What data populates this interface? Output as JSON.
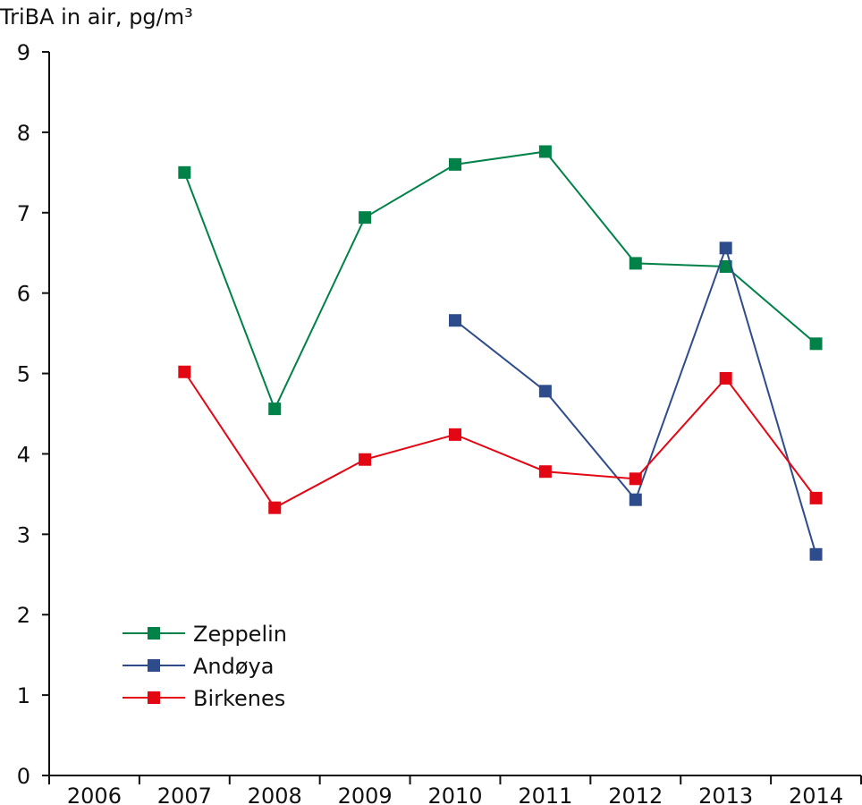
{
  "chart_data": {
    "type": "line",
    "title": "",
    "ylabel": "TriBA in air, pg/m³",
    "xlabel": "",
    "categories": [
      "2006",
      "2007",
      "2008",
      "2009",
      "2010",
      "2011",
      "2012",
      "2013",
      "2014"
    ],
    "ylim": [
      0,
      9
    ],
    "yticks": [
      "0",
      "1",
      "2",
      "3",
      "4",
      "5",
      "6",
      "7",
      "8",
      "9"
    ],
    "grid": false,
    "legend_position": "bottom-left",
    "series": [
      {
        "name": "Zeppelin",
        "color": "#008148",
        "values": [
          null,
          7.5,
          4.56,
          6.94,
          7.6,
          7.76,
          6.37,
          6.33,
          5.37
        ]
      },
      {
        "name": "Andøya",
        "color": "#2e4b8b",
        "values": [
          null,
          null,
          null,
          null,
          5.66,
          4.78,
          3.43,
          6.56,
          2.75
        ]
      },
      {
        "name": "Birkenes",
        "color": "#e30613",
        "values": [
          null,
          5.02,
          3.33,
          3.93,
          4.24,
          3.78,
          3.69,
          4.94,
          3.45
        ]
      }
    ]
  }
}
